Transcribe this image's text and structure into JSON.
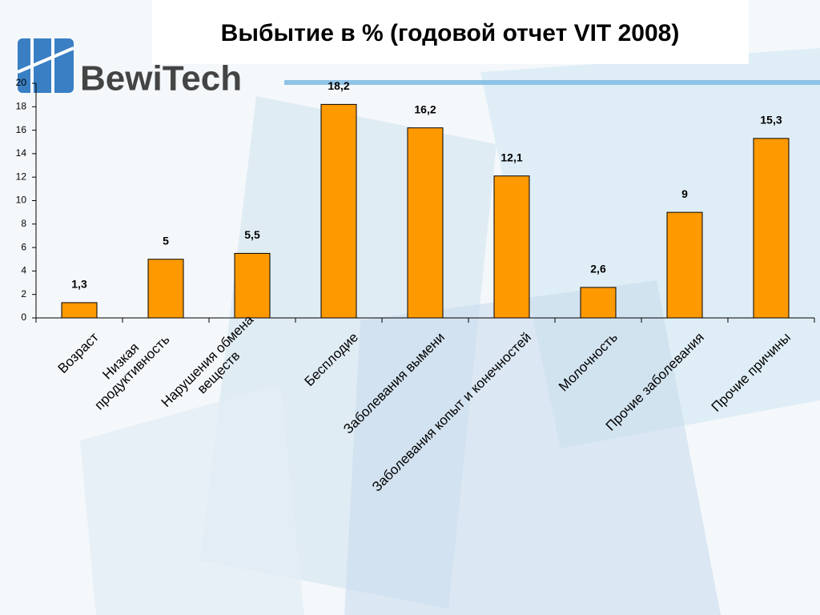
{
  "logo": "BewiTech",
  "chart_data": {
    "type": "bar",
    "title": "Выбытие в % (годовой отчет VIT 2008)",
    "categories": [
      "Возраст",
      "Низкая\nпродуктивность",
      "Нарушения обмена\nвеществ",
      "Бесплодие",
      "Заболевания вымени",
      "Заболевания копыт и конечностей",
      "Молочность",
      "Прочие заболевания",
      "Прочие причины"
    ],
    "values": [
      1.3,
      5,
      5.5,
      18.2,
      16.2,
      12.1,
      2.6,
      9,
      15.3
    ],
    "value_labels": [
      "1,3",
      "5",
      "5,5",
      "18,2",
      "16,2",
      "12,1",
      "2,6",
      "9",
      "15,3"
    ],
    "color": "#ff9900",
    "ylim": [
      0,
      20
    ],
    "yticks": [
      0,
      2,
      4,
      6,
      8,
      10,
      12,
      14,
      16,
      18,
      20
    ],
    "grid": false
  }
}
